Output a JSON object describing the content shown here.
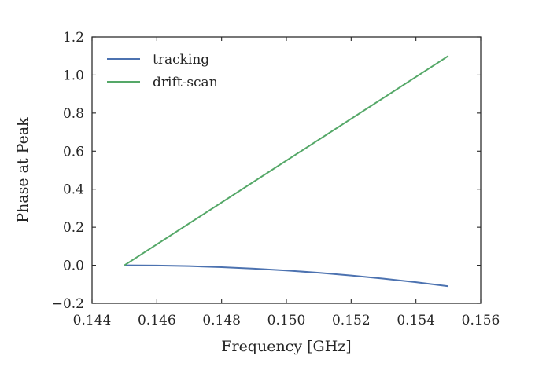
{
  "chart_data": {
    "type": "line",
    "title": "",
    "xlabel": "Frequency [GHz]",
    "ylabel": "Phase at Peak",
    "xlim": [
      0.144,
      0.156
    ],
    "ylim": [
      -0.2,
      1.2
    ],
    "xticks": [
      0.144,
      0.146,
      0.148,
      0.15,
      0.152,
      0.154,
      0.156
    ],
    "xtick_labels": [
      "0.144",
      "0.146",
      "0.148",
      "0.150",
      "0.152",
      "0.154",
      "0.156"
    ],
    "yticks": [
      -0.2,
      0.0,
      0.2,
      0.4,
      0.6,
      0.8,
      1.0,
      1.2
    ],
    "ytick_labels": [
      "−0.2",
      "0.0",
      "0.2",
      "0.4",
      "0.6",
      "0.8",
      "1.0",
      "1.2"
    ],
    "grid": false,
    "legend_position": "top-left",
    "series": [
      {
        "name": "tracking",
        "color": "#4c72b0",
        "x": [
          0.145,
          0.146,
          0.147,
          0.148,
          0.149,
          0.15,
          0.151,
          0.152,
          0.153,
          0.154,
          0.155
        ],
        "y": [
          0.0,
          -0.0011,
          -0.0044,
          -0.0099,
          -0.0176,
          -0.0275,
          -0.0396,
          -0.0539,
          -0.0704,
          -0.0891,
          -0.11
        ]
      },
      {
        "name": "drift-scan",
        "color": "#55a868",
        "x": [
          0.145,
          0.155
        ],
        "y": [
          0.0,
          1.1
        ]
      }
    ]
  }
}
